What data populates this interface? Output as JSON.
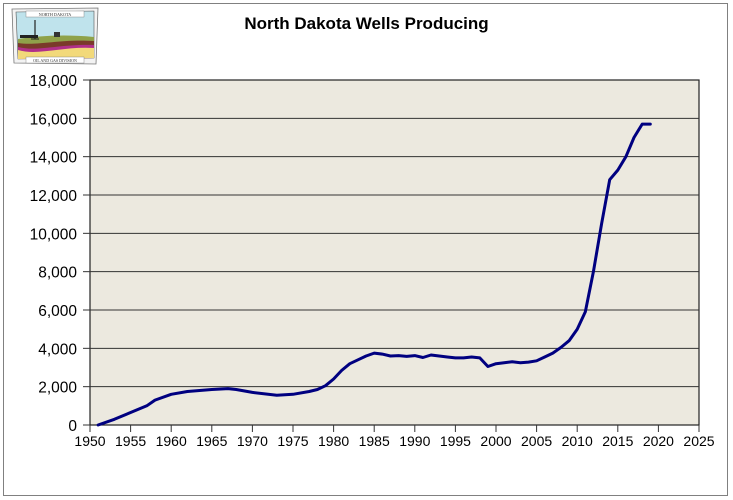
{
  "chart_data": {
    "type": "line",
    "title": "North Dakota Wells Producing",
    "xlabel": "",
    "ylabel": "",
    "xlim": [
      1950,
      2025
    ],
    "ylim": [
      0,
      18000
    ],
    "x_ticks": [
      1950,
      1955,
      1960,
      1965,
      1970,
      1975,
      1980,
      1985,
      1990,
      1995,
      2000,
      2005,
      2010,
      2015,
      2020,
      2025
    ],
    "x_tick_labels": [
      "1950",
      "1955",
      "1960",
      "1965",
      "1970",
      "1975",
      "1980",
      "1985",
      "1990",
      "1995",
      "2000",
      "2005",
      "2010",
      "2015",
      "2020",
      "2025"
    ],
    "y_ticks": [
      0,
      2000,
      4000,
      6000,
      8000,
      10000,
      12000,
      14000,
      16000,
      18000
    ],
    "y_tick_labels": [
      "0",
      "2,000",
      "4,000",
      "6,000",
      "8,000",
      "10,000",
      "12,000",
      "14,000",
      "16,000",
      "18,000"
    ],
    "grid": "horizontal",
    "legend": "none",
    "series": [
      {
        "name": "Wells Producing",
        "color": "#000080",
        "x": [
          1951,
          1953,
          1955,
          1957,
          1958,
          1960,
          1962,
          1965,
          1967,
          1968,
          1970,
          1973,
          1975,
          1977,
          1978,
          1979,
          1980,
          1981,
          1982,
          1983,
          1984,
          1985,
          1986,
          1987,
          1988,
          1989,
          1990,
          1991,
          1992,
          1993,
          1994,
          1995,
          1996,
          1997,
          1998,
          1999,
          2000,
          2001,
          2002,
          2003,
          2004,
          2005,
          2006,
          2007,
          2008,
          2009,
          2010,
          2011,
          2012,
          2013,
          2014,
          2015,
          2016,
          2017,
          2018,
          2019
        ],
        "values": [
          0,
          300,
          650,
          1000,
          1300,
          1600,
          1750,
          1850,
          1900,
          1850,
          1700,
          1550,
          1600,
          1750,
          1850,
          2050,
          2400,
          2850,
          3200,
          3400,
          3600,
          3750,
          3700,
          3600,
          3620,
          3580,
          3620,
          3520,
          3650,
          3600,
          3550,
          3500,
          3500,
          3550,
          3500,
          3050,
          3200,
          3250,
          3300,
          3250,
          3280,
          3350,
          3550,
          3750,
          4050,
          4400,
          5000,
          5900,
          8000,
          10500,
          12800,
          13300,
          14000,
          15000,
          15700,
          15700
        ]
      }
    ]
  },
  "logo": {
    "top_text": "NORTH DAKOTA",
    "bottom_text": "OIL AND GAS DIVISION"
  },
  "colors": {
    "plot_bg": "#ECE9DF",
    "line": "#000080",
    "grid": "#000000",
    "frame": "#808080"
  }
}
